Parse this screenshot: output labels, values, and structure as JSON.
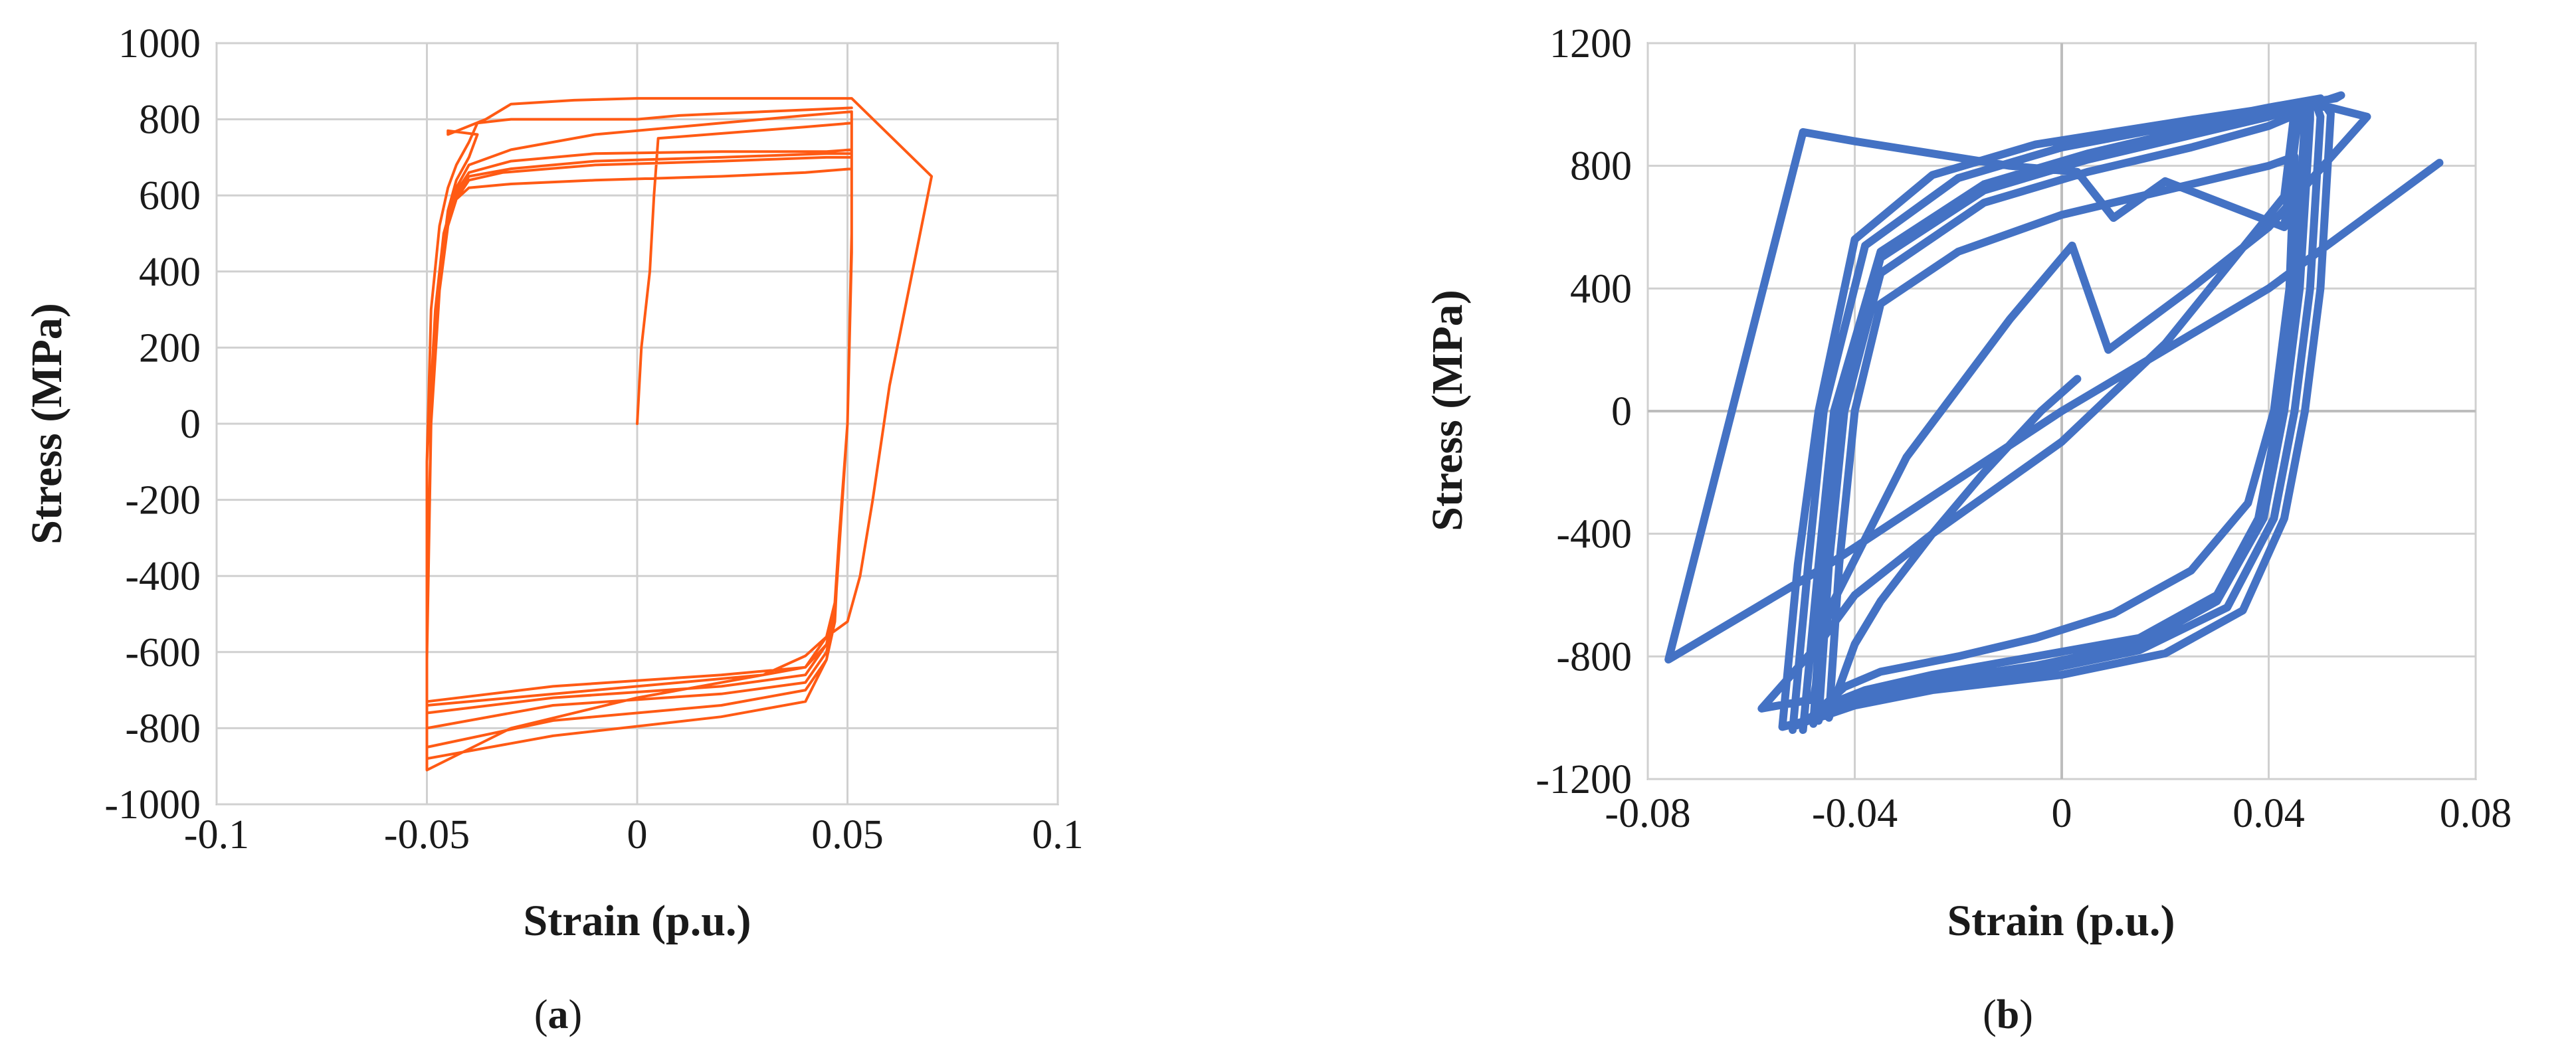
{
  "chart_data": [
    {
      "type": "line",
      "panel_label": "a",
      "xlabel": "Strain (p.u.)",
      "ylabel": "Stress (MPa)",
      "xlim": [
        -0.1,
        0.1
      ],
      "ylim": [
        -1000,
        1000
      ],
      "xticks": [
        "-0.1",
        "-0.05",
        "0",
        "0.05",
        "0.1"
      ],
      "yticks": [
        "1000",
        "800",
        "600",
        "400",
        "200",
        "0",
        "-200",
        "-400",
        "-600",
        "-800",
        "-1000"
      ],
      "grid": true,
      "legend": "none",
      "color": "#ff5a14",
      "series": [
        {
          "x": [
            0,
            0.001,
            0.003,
            0.004,
            0.005,
            0.04,
            0.051,
            0.051,
            0.05,
            0.048,
            0.047,
            0.045,
            0.04,
            0.03,
            0.0,
            -0.03,
            -0.05,
            -0.05,
            -0.05,
            -0.048,
            -0.046,
            -0.044,
            -0.04,
            -0.03,
            -0.01,
            0.02,
            0.04,
            0.051,
            0.051,
            0.05,
            0.048,
            0.047,
            0.045,
            0.04,
            0.02,
            -0.02,
            -0.05,
            -0.05,
            -0.049,
            -0.047,
            -0.045,
            -0.043,
            -0.04,
            -0.032,
            -0.01,
            0.02,
            0.045,
            0.051,
            0.051,
            0.05,
            0.048,
            0.047,
            0.045,
            0.04,
            0.02,
            -0.02,
            -0.05,
            -0.05,
            -0.049,
            -0.047,
            -0.045,
            -0.043,
            -0.04,
            -0.03,
            -0.01,
            0.02,
            0.045,
            0.051,
            0.051,
            0.05,
            0.048,
            0.047,
            0.045,
            0.04,
            0.02,
            -0.02,
            -0.05,
            -0.05,
            -0.049,
            -0.047,
            -0.045,
            -0.043,
            -0.04,
            -0.03,
            -0.01,
            0.02,
            0.045,
            0.051,
            0.051,
            0.05,
            0.048,
            0.047,
            0.045,
            0.04,
            0.02,
            -0.02,
            -0.05,
            -0.05,
            -0.049,
            -0.047,
            -0.045,
            -0.043,
            -0.04,
            -0.03,
            -0.01,
            0.02,
            0.04,
            0.051,
            0.051,
            0.05,
            0.047,
            0.045,
            0.04,
            0.02,
            -0.02,
            -0.05,
            -0.05,
            -0.049,
            -0.047,
            -0.045,
            -0.043,
            -0.04,
            -0.038,
            -0.045,
            -0.045,
            -0.036,
            -0.03,
            -0.015,
            0.0,
            0.02,
            0.04,
            0.051,
            0.07,
            0.07,
            0.06,
            0.056,
            0.053,
            0.05,
            0.045,
            0.04,
            0.03,
            0.0,
            -0.03,
            -0.05,
            -0.05,
            -0.05,
            -0.049,
            -0.047,
            -0.045,
            -0.043,
            -0.04,
            -0.038,
            -0.03,
            -0.01,
            0.0,
            0.01,
            0.03,
            0.051
          ],
          "y": [
            0,
            200,
            400,
            600,
            750,
            780,
            790,
            500,
            0,
            -300,
            -480,
            -580,
            -640,
            -660,
            -690,
            -720,
            -740,
            -500,
            -100,
            300,
            500,
            580,
            620,
            630,
            640,
            650,
            660,
            670,
            450,
            0,
            -300,
            -470,
            -560,
            -640,
            -660,
            -690,
            -730,
            -470,
            0,
            350,
            520,
            590,
            640,
            660,
            680,
            690,
            700,
            700,
            450,
            0,
            -300,
            -480,
            -580,
            -660,
            -690,
            -720,
            -760,
            -470,
            0,
            350,
            520,
            600,
            650,
            670,
            690,
            700,
            710,
            710,
            460,
            0,
            -300,
            -500,
            -600,
            -680,
            -710,
            -740,
            -800,
            -500,
            0,
            350,
            520,
            610,
            660,
            690,
            710,
            715,
            715,
            720,
            460,
            0,
            -300,
            -520,
            -620,
            -700,
            -740,
            -780,
            -850,
            -520,
            0,
            360,
            540,
            620,
            680,
            720,
            760,
            790,
            810,
            820,
            500,
            0,
            -500,
            -620,
            -730,
            -770,
            -820,
            -880,
            -620,
            0,
            380,
            560,
            640,
            700,
            760,
            770,
            760,
            800,
            840,
            850,
            855,
            855,
            855,
            855,
            650,
            650,
            100,
            -200,
            -400,
            -520,
            -560,
            -610,
            -660,
            -720,
            -800,
            -910,
            -600,
            -100,
            300,
            520,
            620,
            680,
            740,
            790,
            800,
            800,
            800,
            810,
            820,
            830
          ]
        }
      ]
    },
    {
      "type": "line",
      "panel_label": "b",
      "xlabel": "Strain (p.u.)",
      "ylabel": "Stress (MPa)",
      "xlim": [
        -0.08,
        0.08
      ],
      "ylim": [
        -1200,
        1200
      ],
      "xticks": [
        "-0.08",
        "-0.04",
        "0",
        "0.04",
        "0.08"
      ],
      "yticks": [
        "1200",
        "800",
        "400",
        "0",
        "-400",
        "-800",
        "-1200"
      ],
      "grid": true,
      "legend": "none",
      "color": "#4472c4",
      "series": [
        {
          "x": [
            0.003,
            -0.004,
            -0.015,
            -0.025,
            -0.035,
            -0.04,
            -0.043,
            -0.045,
            -0.043,
            -0.04,
            -0.035,
            -0.02,
            0.0,
            0.02,
            0.035,
            0.04,
            0.045,
            0.044,
            0.041,
            0.036,
            0.025,
            0.01,
            -0.005,
            -0.02,
            -0.035,
            -0.042,
            -0.046,
            -0.047,
            -0.045,
            -0.042,
            -0.035,
            -0.015,
            0.005,
            0.025,
            0.04,
            0.047,
            0.047,
            0.045,
            0.042,
            0.038,
            0.03,
            0.015,
            -0.005,
            -0.025,
            -0.038,
            -0.044,
            -0.048,
            -0.048,
            -0.046,
            -0.043,
            -0.035,
            -0.015,
            0.005,
            0.025,
            0.04,
            0.048,
            0.048,
            0.046,
            0.043,
            0.039,
            0.03,
            0.015,
            -0.005,
            -0.025,
            -0.04,
            -0.045,
            -0.05,
            -0.05,
            -0.047,
            -0.044,
            -0.035,
            -0.015,
            0.005,
            0.025,
            0.04,
            0.049,
            0.05,
            0.048,
            0.045,
            0.041,
            0.032,
            0.015,
            -0.005,
            -0.025,
            -0.04,
            -0.046,
            -0.052,
            -0.052,
            -0.049,
            -0.046,
            -0.038,
            -0.02,
            0.0,
            0.025,
            0.04,
            0.05,
            0.052,
            0.05,
            0.047,
            0.043,
            0.035,
            0.02,
            0.0,
            -0.025,
            -0.04,
            -0.047,
            -0.054,
            -0.054,
            -0.051,
            -0.047,
            -0.04,
            -0.025,
            -0.005,
            0.025,
            0.045,
            0.053,
            0.054,
            0.045,
            0.043,
            0.02,
            0.0,
            -0.025,
            -0.04,
            -0.047,
            -0.058,
            -0.048,
            -0.045,
            -0.03,
            -0.01,
            0.002,
            0.009,
            0.025,
            0.04,
            0.059,
            0.052,
            0.046,
            0.043,
            0.02,
            0.01,
            0.003,
            -0.01,
            -0.025,
            -0.04,
            -0.05,
            -0.076,
            -0.045,
            0.0,
            0.04,
            0.073
          ],
          "y": [
            105,
            0,
            -200,
            -400,
            -620,
            -760,
            -900,
            -1000,
            -500,
            0,
            350,
            520,
            640,
            720,
            780,
            800,
            830,
            400,
            0,
            -300,
            -520,
            -660,
            -740,
            -800,
            -850,
            -900,
            -960,
            -1010,
            -500,
            0,
            450,
            680,
            780,
            860,
            930,
            980,
            950,
            400,
            0,
            -350,
            -600,
            -740,
            -800,
            -860,
            -910,
            -950,
            -990,
            -1020,
            -500,
            0,
            500,
            720,
            820,
            900,
            960,
            1000,
            950,
            400,
            0,
            -350,
            -620,
            -760,
            -830,
            -880,
            -930,
            -970,
            -1010,
            -1040,
            -500,
            0,
            520,
            740,
            840,
            920,
            980,
            1010,
            960,
            400,
            0,
            -350,
            -640,
            -780,
            -850,
            -900,
            -950,
            -990,
            -1030,
            -1040,
            -500,
            0,
            540,
            760,
            860,
            940,
            990,
            1020,
            970,
            400,
            0,
            -350,
            -650,
            -790,
            -860,
            -910,
            -960,
            -1000,
            -1030,
            -1030,
            -500,
            0,
            560,
            770,
            870,
            950,
            1000,
            1020,
            1030,
            980,
            700,
            220,
            -100,
            -400,
            -600,
            -760,
            -970,
            -940,
            -650,
            -150,
            300,
            540,
            200,
            400,
            600,
            960,
            990,
            1000,
            600,
            750,
            630,
            780,
            800,
            840,
            880,
            910,
            -810,
            -500,
            0,
            400,
            810
          ]
        }
      ]
    }
  ]
}
